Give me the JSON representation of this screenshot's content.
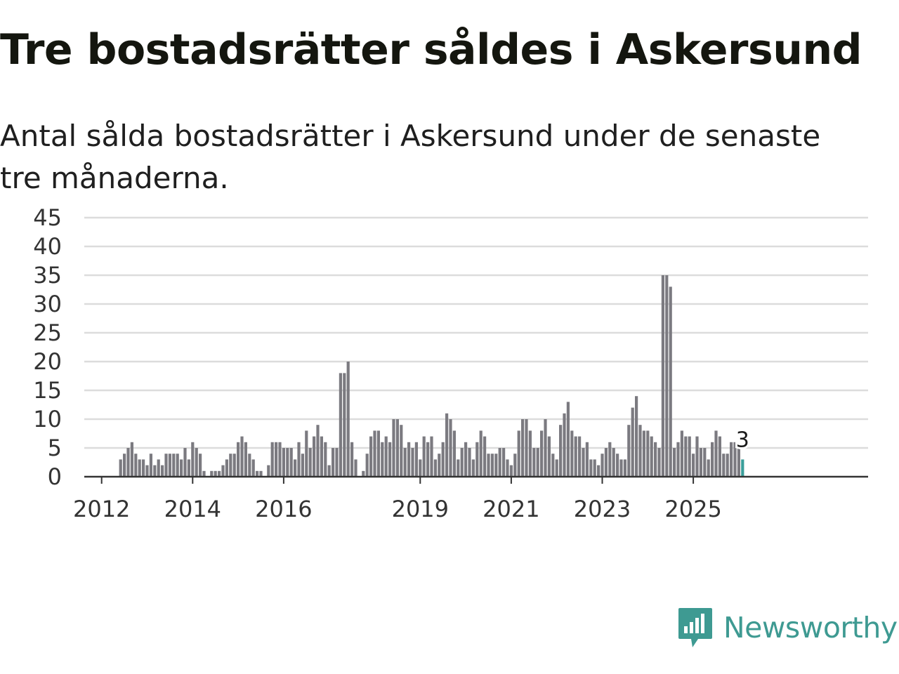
{
  "title": "Tre bostadsrätter såldes i Askersund",
  "subtitle": "Antal sålda bostadsrätter i Askersund under de senaste tre månaderna.",
  "brand": {
    "name": "Newsworthy",
    "color": "#3e9a92",
    "icon": "newsworthy-logo-icon"
  },
  "colors": {
    "bar": "#7b7a80",
    "highlight": "#3a9e9a",
    "grid": "#dcdcdc",
    "axis": "#333333",
    "text": "#333333"
  },
  "chart_data": {
    "type": "bar",
    "title": "Tre bostadsrätter såldes i Askersund",
    "xlabel": "",
    "ylabel": "",
    "ylim": [
      0,
      45
    ],
    "yticks": [
      "0",
      "5",
      "10",
      "15",
      "20",
      "25",
      "30",
      "35",
      "40",
      "45"
    ],
    "xticks": [
      "2012",
      "2014",
      "2016",
      "2019",
      "2021",
      "2023",
      "2025"
    ],
    "first_period": "2011-09",
    "period_months": 1,
    "annotation": {
      "label": "3",
      "target": "last"
    },
    "values": [
      0,
      0,
      0,
      0,
      0,
      0,
      0,
      0,
      0,
      3,
      4,
      5,
      6,
      4,
      3,
      3,
      2,
      4,
      2,
      3,
      2,
      4,
      4,
      4,
      4,
      3,
      5,
      3,
      6,
      5,
      4,
      1,
      0,
      1,
      1,
      1,
      2,
      3,
      4,
      4,
      6,
      7,
      6,
      4,
      3,
      1,
      1,
      0,
      2,
      6,
      6,
      6,
      5,
      5,
      5,
      3,
      6,
      4,
      8,
      5,
      7,
      9,
      7,
      6,
      2,
      5,
      5,
      18,
      18,
      20,
      6,
      3,
      0,
      1,
      4,
      7,
      8,
      8,
      6,
      7,
      6,
      10,
      10,
      9,
      5,
      6,
      5,
      6,
      3,
      7,
      6,
      7,
      3,
      4,
      6,
      11,
      10,
      8,
      3,
      5,
      6,
      5,
      3,
      6,
      8,
      7,
      4,
      4,
      4,
      5,
      5,
      3,
      2,
      4,
      8,
      10,
      10,
      8,
      5,
      5,
      8,
      10,
      7,
      4,
      3,
      9,
      11,
      13,
      8,
      7,
      7,
      5,
      6,
      3,
      3,
      2,
      4,
      5,
      6,
      5,
      4,
      3,
      3,
      9,
      12,
      14,
      9,
      8,
      8,
      7,
      6,
      5,
      35,
      35,
      33,
      5,
      6,
      8,
      7,
      7,
      4,
      7,
      5,
      5,
      3,
      6,
      8,
      7,
      4,
      4,
      6,
      6,
      5,
      3
    ]
  }
}
